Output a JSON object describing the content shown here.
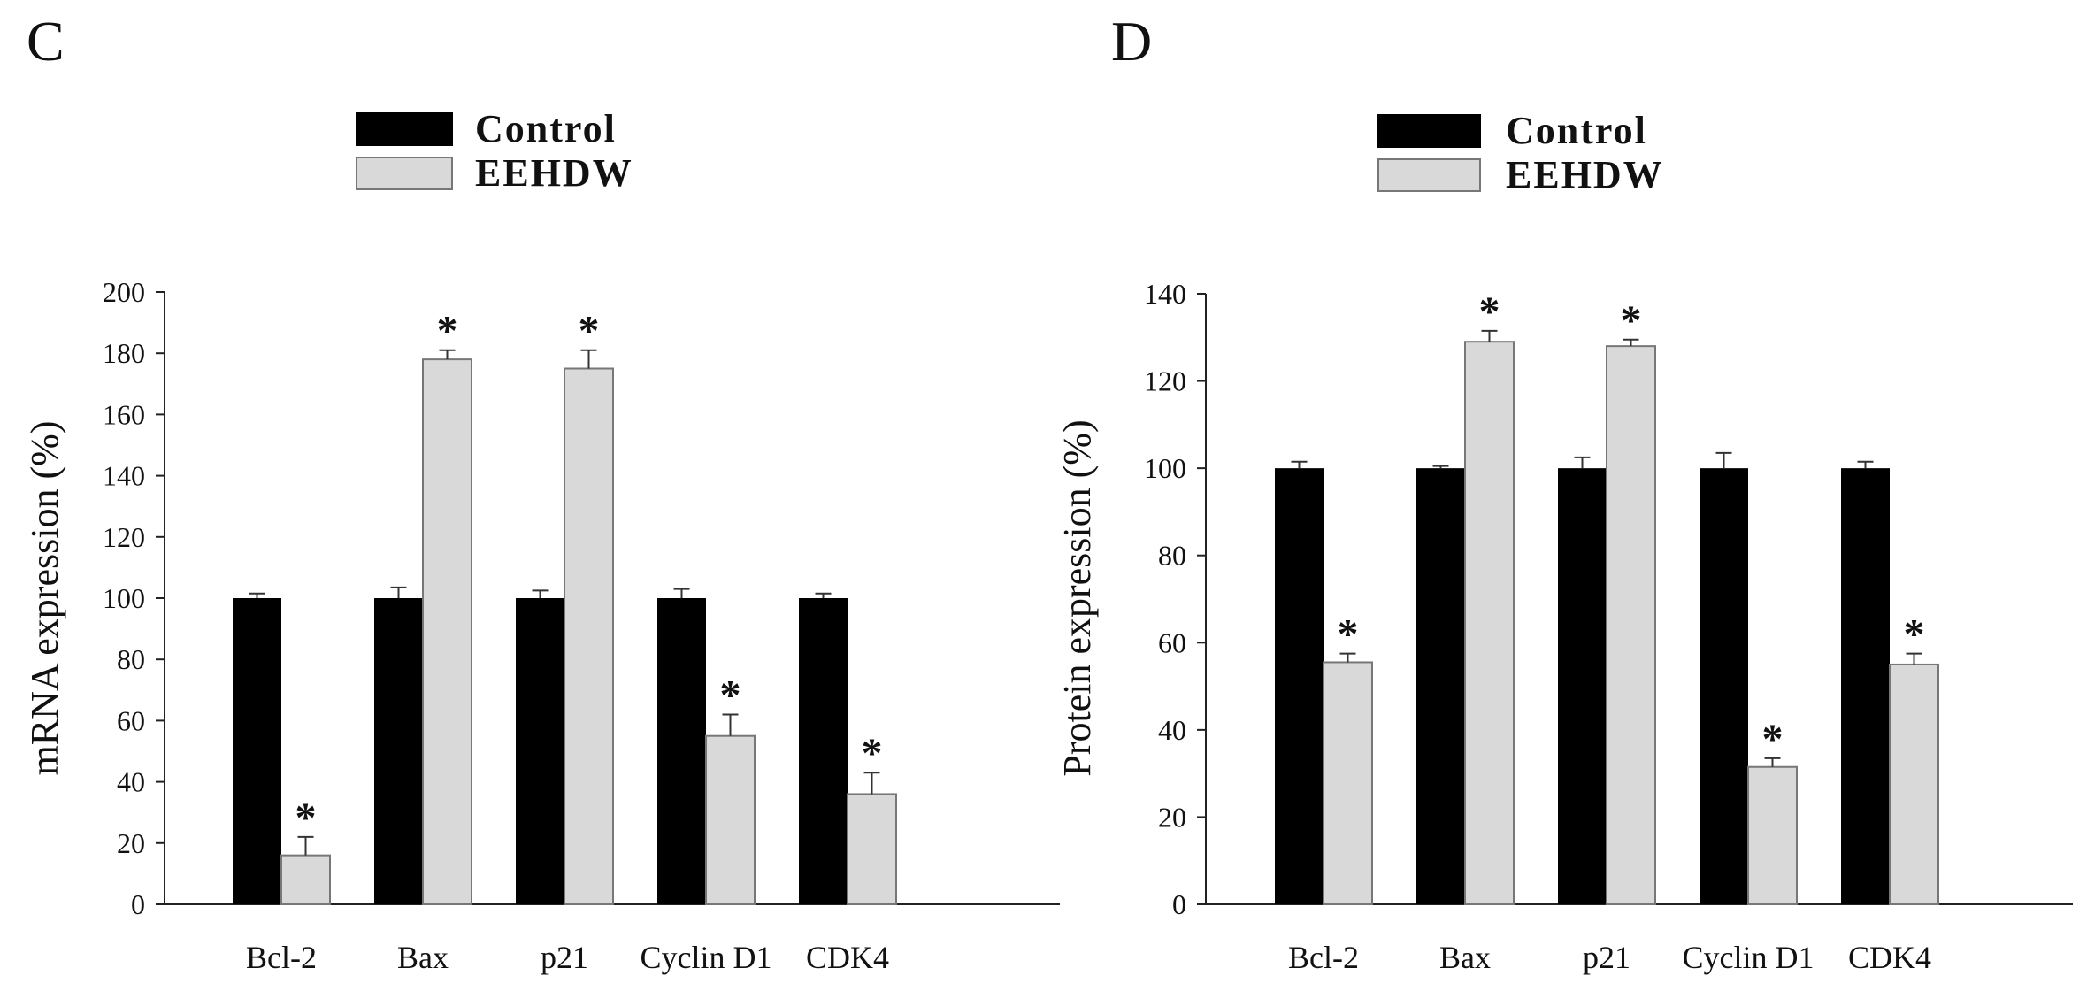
{
  "colors": {
    "control": "#000000",
    "eehdw": "#d9d9d9",
    "eehdw_border": "#777777",
    "axis": "#222222"
  },
  "chart_data": [
    {
      "type": "bar",
      "panel": "C",
      "legend": [
        "Control",
        "EEHDW"
      ],
      "ylabel": "mRNA expression (%)",
      "xlabel": "",
      "ylim": [
        0,
        200
      ],
      "yticks": [
        0,
        20,
        40,
        60,
        80,
        100,
        120,
        140,
        160,
        180,
        200
      ],
      "categories": [
        "Bcl-2",
        "Bax",
        "p21",
        "Cyclin D1",
        "CDK4"
      ],
      "series": [
        {
          "name": "Control",
          "values": [
            100,
            100,
            100,
            100,
            100
          ],
          "errors": [
            1.5,
            3.5,
            2.5,
            3,
            1.5
          ]
        },
        {
          "name": "EEHDW",
          "values": [
            16,
            178,
            175,
            55,
            36
          ],
          "errors": [
            6,
            3,
            6,
            7,
            7
          ]
        }
      ],
      "significance": [
        "*",
        "*",
        "*",
        "*",
        "*"
      ]
    },
    {
      "type": "bar",
      "panel": "D",
      "legend": [
        "Control",
        "EEHDW"
      ],
      "ylabel": "Protein expression (%)",
      "xlabel": "",
      "ylim": [
        0,
        140
      ],
      "yticks": [
        0,
        20,
        40,
        60,
        80,
        100,
        120,
        140
      ],
      "categories": [
        "Bcl-2",
        "Bax",
        "p21",
        "Cyclin D1",
        "CDK4"
      ],
      "series": [
        {
          "name": "Control",
          "values": [
            100,
            100,
            100,
            100,
            100
          ],
          "errors": [
            1.5,
            0.5,
            2.5,
            3.5,
            1.5
          ]
        },
        {
          "name": "EEHDW",
          "values": [
            55.5,
            129,
            128,
            31.5,
            55
          ],
          "errors": [
            2,
            2.5,
            1.5,
            2,
            2.5
          ]
        }
      ],
      "significance": [
        "*",
        "*",
        "*",
        "*",
        "*"
      ]
    }
  ]
}
